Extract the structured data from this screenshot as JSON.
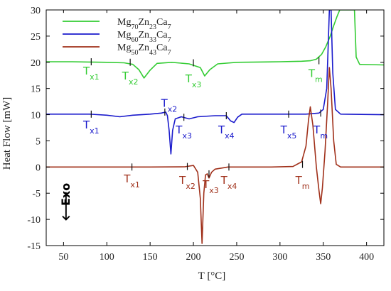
{
  "chart_data": {
    "type": "line",
    "title": "",
    "xlabel": "T [°C]",
    "ylabel": "Heat Flow [mW]",
    "xlim": [
      30,
      420
    ],
    "ylim": [
      -15,
      30
    ],
    "xticks": [
      50,
      100,
      150,
      200,
      250,
      300,
      350,
      400
    ],
    "yticks": [
      -15,
      -10,
      -5,
      0,
      5,
      10,
      15,
      20,
      25,
      30
    ],
    "grid": false,
    "legend_position": "top-left",
    "series": [
      {
        "name_parts": [
          "Mg",
          "70",
          "Zn",
          "23",
          "Ca",
          "7"
        ],
        "color": "#33cc33",
        "points": [
          [
            30,
            20.1
          ],
          [
            60,
            20.1
          ],
          [
            80,
            20.05
          ],
          [
            100,
            20.0
          ],
          [
            120,
            19.9
          ],
          [
            130,
            19.6
          ],
          [
            137,
            18.6
          ],
          [
            143,
            17.0
          ],
          [
            150,
            18.5
          ],
          [
            158,
            19.8
          ],
          [
            175,
            20.0
          ],
          [
            195,
            19.7
          ],
          [
            208,
            19.0
          ],
          [
            213,
            17.4
          ],
          [
            219,
            18.6
          ],
          [
            228,
            19.7
          ],
          [
            250,
            20.0
          ],
          [
            300,
            20.1
          ],
          [
            325,
            20.2
          ],
          [
            335,
            20.3
          ],
          [
            342,
            20.6
          ],
          [
            348,
            21.5
          ],
          [
            353,
            23.0
          ],
          [
            358,
            25.0
          ],
          [
            362,
            27.0
          ],
          [
            366,
            28.8
          ],
          [
            369,
            30.0
          ],
          [
            386,
            30.0
          ],
          [
            388,
            21.0
          ],
          [
            392,
            19.6
          ],
          [
            420,
            19.5
          ]
        ]
      },
      {
        "name_parts": [
          "Mg",
          "60",
          "Zn",
          "33",
          "Ca",
          "7"
        ],
        "color": "#1a1acc",
        "points": [
          [
            30,
            10.1
          ],
          [
            80,
            10.1
          ],
          [
            100,
            9.9
          ],
          [
            115,
            9.6
          ],
          [
            130,
            9.9
          ],
          [
            150,
            10.1
          ],
          [
            163,
            10.3
          ],
          [
            168,
            10.5
          ],
          [
            170,
            9.8
          ],
          [
            172,
            7.0
          ],
          [
            174,
            2.5
          ],
          [
            176,
            7.0
          ],
          [
            179,
            9.2
          ],
          [
            186,
            9.6
          ],
          [
            195,
            9.2
          ],
          [
            205,
            9.6
          ],
          [
            225,
            9.8
          ],
          [
            238,
            9.8
          ],
          [
            243,
            8.8
          ],
          [
            247,
            8.5
          ],
          [
            251,
            9.5
          ],
          [
            256,
            10.1
          ],
          [
            300,
            10.1
          ],
          [
            330,
            10.1
          ],
          [
            345,
            10.3
          ],
          [
            350,
            11.0
          ],
          [
            354,
            15.0
          ],
          [
            356,
            25.0
          ],
          [
            357,
            30.0
          ],
          [
            359,
            30.0
          ],
          [
            361,
            18.0
          ],
          [
            364,
            11.0
          ],
          [
            370,
            10.1
          ],
          [
            420,
            10.0
          ]
        ]
      },
      {
        "name_parts": [
          "Mg",
          "50",
          "Zn",
          "43",
          "Ca",
          "7"
        ],
        "color": "#a0301a",
        "points": [
          [
            30,
            0.0
          ],
          [
            150,
            0.0
          ],
          [
            190,
            0.05
          ],
          [
            200,
            0.3
          ],
          [
            205,
            -1.0
          ],
          [
            208,
            -6.0
          ],
          [
            210,
            -14.6
          ],
          [
            212,
            -5.0
          ],
          [
            214,
            -1.5
          ],
          [
            216,
            -1.3
          ],
          [
            218,
            -2.1
          ],
          [
            221,
            -1.0
          ],
          [
            225,
            -0.4
          ],
          [
            240,
            0.0
          ],
          [
            290,
            0.0
          ],
          [
            315,
            0.1
          ],
          [
            325,
            1.0
          ],
          [
            330,
            4.0
          ],
          [
            333,
            9.0
          ],
          [
            335,
            11.5
          ],
          [
            338,
            8.0
          ],
          [
            342,
            0.0
          ],
          [
            345,
            -4.5
          ],
          [
            347,
            -7.0
          ],
          [
            349,
            -4.0
          ],
          [
            352,
            3.0
          ],
          [
            355,
            12.0
          ],
          [
            357,
            19.0
          ],
          [
            359,
            15.0
          ],
          [
            362,
            5.0
          ],
          [
            365,
            0.5
          ],
          [
            370,
            0.0
          ],
          [
            420,
            0.0
          ]
        ]
      }
    ],
    "annotations": [
      {
        "base": "T",
        "sub": "x1",
        "series": 0,
        "tick_x": 82,
        "tick_y": 20.1,
        "label_x": 82,
        "label_y": 18.5
      },
      {
        "base": "T",
        "sub": "x2",
        "series": 0,
        "tick_x": 127,
        "tick_y": 20.0,
        "label_x": 127,
        "label_y": 17.5
      },
      {
        "base": "T",
        "sub": "x3",
        "series": 0,
        "tick_x": 200,
        "tick_y": 19.9,
        "label_x": 200,
        "label_y": 17.0
      },
      {
        "base": "T",
        "sub": "m",
        "series": 0,
        "tick_x": 345,
        "tick_y": 20.3,
        "label_x": 341,
        "label_y": 18.0
      },
      {
        "base": "T",
        "sub": "x1",
        "series": 1,
        "tick_x": 82,
        "tick_y": 10.1,
        "label_x": 82,
        "label_y": 8.2
      },
      {
        "base": "T",
        "sub": "x2",
        "series": 1,
        "tick_x": 167,
        "tick_y": 10.5,
        "label_x": 172,
        "label_y": 12.3
      },
      {
        "base": "T",
        "sub": "x3",
        "series": 1,
        "tick_x": 189,
        "tick_y": 9.5,
        "label_x": 189,
        "label_y": 7.2
      },
      {
        "base": "T",
        "sub": "x4",
        "series": 1,
        "tick_x": 238,
        "tick_y": 9.8,
        "label_x": 238,
        "label_y": 7.2
      },
      {
        "base": "T",
        "sub": "x5",
        "series": 1,
        "tick_x": 310,
        "tick_y": 10.1,
        "label_x": 310,
        "label_y": 7.2
      },
      {
        "base": "T",
        "sub": "m",
        "series": 1,
        "tick_x": 347,
        "tick_y": 10.3,
        "label_x": 347,
        "label_y": 7.2
      },
      {
        "base": "T",
        "sub": "x1",
        "series": 2,
        "tick_x": 129,
        "tick_y": 0.0,
        "label_x": 129,
        "label_y": -2.1
      },
      {
        "base": "T",
        "sub": "x2",
        "series": 2,
        "tick_x": 193,
        "tick_y": 0.1,
        "label_x": 193,
        "label_y": -2.4
      },
      {
        "base": "T",
        "sub": "x3",
        "series": 2,
        "tick_x": 218,
        "tick_y": -1.3,
        "label_x": 220,
        "label_y": -3.2
      },
      {
        "base": "T",
        "sub": "x4",
        "series": 2,
        "tick_x": 241,
        "tick_y": 0.0,
        "label_x": 241,
        "label_y": -2.4
      },
      {
        "base": "T",
        "sub": "m",
        "series": 2,
        "tick_x": 326,
        "tick_y": 0.5,
        "label_x": 326,
        "label_y": -2.4
      }
    ],
    "exo_label": "Exo",
    "exo_arrow": "🡐"
  }
}
